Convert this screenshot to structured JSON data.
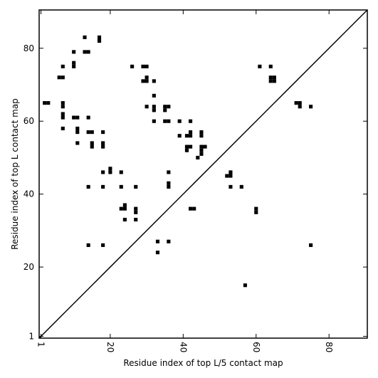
{
  "chart_data": {
    "type": "scatter",
    "marker": "square",
    "color": "#000000",
    "title": "",
    "xlabel": "Residue index of top L/5 contact map",
    "ylabel": "Residue index of top L contact map",
    "xlim": [
      0.5,
      90.5
    ],
    "ylim": [
      0.5,
      90.5
    ],
    "x_ticks": [
      1,
      20,
      40,
      60,
      80
    ],
    "y_ticks": [
      1,
      20,
      40,
      60,
      80
    ],
    "x_tick_labels": [
      "1",
      "20",
      "40",
      "60",
      "80"
    ],
    "y_tick_labels": [
      "1",
      "20",
      "40",
      "60",
      "80"
    ],
    "x_tick_label_rotation": "vertical",
    "diagonal_line": true,
    "grid": false,
    "points": [
      [
        13,
        83
      ],
      [
        17,
        83
      ],
      [
        17,
        82
      ],
      [
        10,
        79
      ],
      [
        13,
        79
      ],
      [
        14,
        79
      ],
      [
        7,
        75
      ],
      [
        10,
        76
      ],
      [
        10,
        75
      ],
      [
        26,
        75
      ],
      [
        29,
        75
      ],
      [
        30,
        75
      ],
      [
        6,
        72
      ],
      [
        7,
        72
      ],
      [
        30,
        72
      ],
      [
        29,
        71
      ],
      [
        30,
        71
      ],
      [
        32,
        71
      ],
      [
        32,
        67
      ],
      [
        2,
        65
      ],
      [
        3,
        65
      ],
      [
        7,
        65
      ],
      [
        7,
        64
      ],
      [
        30,
        64
      ],
      [
        32,
        64
      ],
      [
        32,
        63
      ],
      [
        35,
        64
      ],
      [
        36,
        64
      ],
      [
        35,
        63
      ],
      [
        7,
        62
      ],
      [
        7,
        61
      ],
      [
        10,
        61
      ],
      [
        11,
        61
      ],
      [
        14,
        61
      ],
      [
        32,
        60
      ],
      [
        35,
        60
      ],
      [
        36,
        60
      ],
      [
        39,
        60
      ],
      [
        42,
        60
      ],
      [
        7,
        58
      ],
      [
        11,
        58
      ],
      [
        11,
        57
      ],
      [
        14,
        57
      ],
      [
        15,
        57
      ],
      [
        18,
        57
      ],
      [
        39,
        56
      ],
      [
        41,
        56
      ],
      [
        42,
        57
      ],
      [
        42,
        56
      ],
      [
        45,
        57
      ],
      [
        45,
        56
      ],
      [
        11,
        54
      ],
      [
        15,
        54
      ],
      [
        15,
        53
      ],
      [
        18,
        54
      ],
      [
        18,
        53
      ],
      [
        41,
        53
      ],
      [
        42,
        53
      ],
      [
        41,
        52
      ],
      [
        45,
        53
      ],
      [
        46,
        53
      ],
      [
        45,
        52
      ],
      [
        45,
        51
      ],
      [
        44,
        50
      ],
      [
        20,
        47
      ],
      [
        20,
        46
      ],
      [
        18,
        46
      ],
      [
        23,
        46
      ],
      [
        36,
        46
      ],
      [
        53,
        46
      ],
      [
        52,
        45
      ],
      [
        53,
        45
      ],
      [
        36,
        43
      ],
      [
        36,
        42
      ],
      [
        14,
        42
      ],
      [
        18,
        42
      ],
      [
        23,
        42
      ],
      [
        27,
        42
      ],
      [
        53,
        42
      ],
      [
        56,
        42
      ],
      [
        23,
        36
      ],
      [
        24,
        37
      ],
      [
        24,
        36
      ],
      [
        27,
        36
      ],
      [
        27,
        35
      ],
      [
        42,
        36
      ],
      [
        43,
        36
      ],
      [
        60,
        36
      ],
      [
        60,
        35
      ],
      [
        24,
        33
      ],
      [
        27,
        33
      ],
      [
        33,
        27
      ],
      [
        36,
        27
      ],
      [
        14,
        26
      ],
      [
        18,
        26
      ],
      [
        33,
        24
      ],
      [
        75,
        26
      ],
      [
        57,
        15
      ],
      [
        61,
        75
      ],
      [
        64,
        75
      ],
      [
        64,
        72
      ],
      [
        65,
        72
      ],
      [
        64,
        71
      ],
      [
        65,
        71
      ],
      [
        71,
        65
      ],
      [
        72,
        65
      ],
      [
        72,
        64
      ],
      [
        75,
        64
      ]
    ]
  }
}
